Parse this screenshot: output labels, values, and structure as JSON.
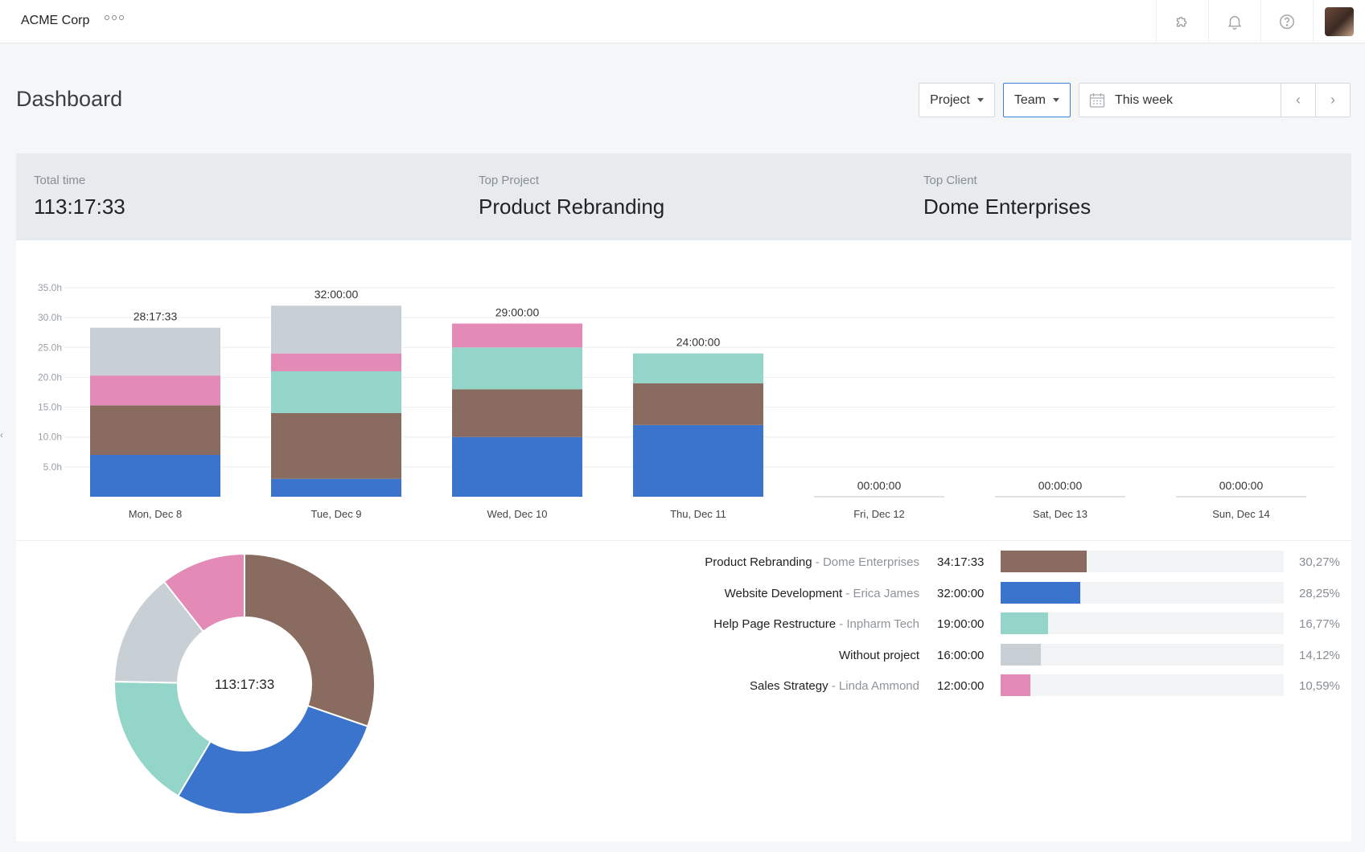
{
  "app": {
    "org_name": "ACME Corp"
  },
  "topbar": {
    "icons": [
      "puzzle-icon",
      "bell-icon",
      "help-icon"
    ]
  },
  "header": {
    "title": "Dashboard",
    "project_filter": "Project",
    "team_filter": "Team",
    "date_range": "This week",
    "prev_label": "‹",
    "next_label": "›"
  },
  "summary": {
    "total_label": "Total time",
    "total_value": "113:17:33",
    "project_label": "Top Project",
    "project_value": "Product Rebranding",
    "client_label": "Top Client",
    "client_value": "Dome Enterprises"
  },
  "colors": {
    "Product Rebranding": "#8a6b60",
    "Website Development": "#3a74cc",
    "Help Page Restructure": "#93d5c8",
    "Without project": "#c8d0d6",
    "Sales Strategy": "#e38ab6"
  },
  "chart_data": [
    {
      "type": "bar",
      "stacked": true,
      "categories": [
        "Mon, Dec 8",
        "Tue, Dec 9",
        "Wed, Dec 10",
        "Thu, Dec 11",
        "Fri, Dec 12",
        "Sat, Dec 13",
        "Sun, Dec 14"
      ],
      "totals": [
        "28:17:33",
        "32:00:00",
        "29:00:00",
        "24:00:00",
        "00:00:00",
        "00:00:00",
        "00:00:00"
      ],
      "series": [
        {
          "name": "Website Development",
          "values": [
            7,
            3,
            10,
            12,
            0,
            0,
            0
          ]
        },
        {
          "name": "Product Rebranding",
          "values": [
            8.3,
            11,
            8,
            7,
            0,
            0,
            0
          ]
        },
        {
          "name": "Help Page Restructure",
          "values": [
            0,
            7,
            7,
            5,
            0,
            0,
            0
          ]
        },
        {
          "name": "Sales Strategy",
          "values": [
            5,
            3,
            4,
            0,
            0,
            0,
            0
          ]
        },
        {
          "name": "Without project",
          "values": [
            8,
            8,
            0,
            0,
            0,
            0,
            0
          ]
        }
      ],
      "yticks": [
        "5.0h",
        "10.0h",
        "15.0h",
        "20.0h",
        "25.0h",
        "30.0h",
        "35.0h"
      ],
      "ylim": [
        0,
        35
      ],
      "grid": true
    },
    {
      "type": "pie",
      "center_label": "113:17:33",
      "slices": [
        {
          "name": "Product Rebranding",
          "value": 30.27
        },
        {
          "name": "Website Development",
          "value": 28.25
        },
        {
          "name": "Help Page Restructure",
          "value": 16.77
        },
        {
          "name": "Without project",
          "value": 14.12
        },
        {
          "name": "Sales Strategy",
          "value": 10.59
        }
      ]
    }
  ],
  "breakdown": [
    {
      "project": "Product Rebranding",
      "client": " - Dome Enterprises",
      "time": "34:17:33",
      "percent": "30,27%",
      "fraction": 0.3027
    },
    {
      "project": "Website Development",
      "client": " - Erica James",
      "time": "32:00:00",
      "percent": "28,25%",
      "fraction": 0.2825
    },
    {
      "project": "Help Page Restructure",
      "client": " - Inpharm Tech",
      "time": "19:00:00",
      "percent": "16,77%",
      "fraction": 0.1677
    },
    {
      "project": "Without project",
      "client": "",
      "time": "16:00:00",
      "percent": "14,12%",
      "fraction": 0.1412
    },
    {
      "project": "Sales Strategy",
      "client": " - Linda Ammond",
      "time": "12:00:00",
      "percent": "10,59%",
      "fraction": 0.1059
    }
  ]
}
